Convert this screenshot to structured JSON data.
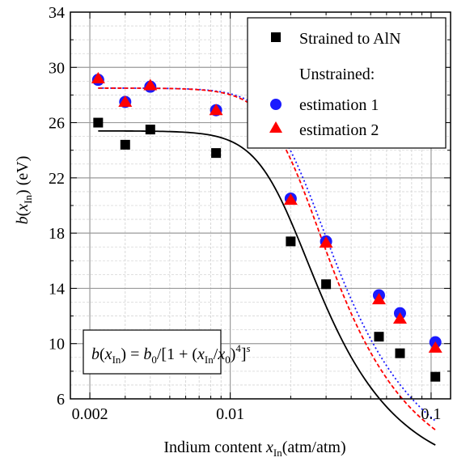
{
  "chart_data": {
    "type": "scatter",
    "x_scale": "log",
    "xlim": [
      0.0016,
      0.125
    ],
    "ylim": [
      6,
      34
    ],
    "grid": true,
    "x_ticks": [
      {
        "value": 0.002,
        "label": "0.002"
      },
      {
        "value": 0.01,
        "label": "0.01"
      },
      {
        "value": 0.1,
        "label": "0.1"
      }
    ],
    "y_ticks": [
      {
        "value": 6,
        "label": "6"
      },
      {
        "value": 10,
        "label": "10"
      },
      {
        "value": 14,
        "label": "14"
      },
      {
        "value": 18,
        "label": "18"
      },
      {
        "value": 22,
        "label": "22"
      },
      {
        "value": 26,
        "label": "26"
      },
      {
        "value": 30,
        "label": "30"
      },
      {
        "value": 34,
        "label": "34"
      }
    ],
    "xlabel": {
      "main": "Indium content ",
      "var": "x",
      "sub": "In",
      "unit": "(atm/atm)"
    },
    "ylabel": {
      "var": "b",
      "open": "(",
      "var2": "x",
      "sub": "In",
      "close": ")",
      "unit": " (eV)"
    },
    "legend": {
      "placement": "top-right",
      "strained": "Strained to AlN",
      "unstrained_heading": "Unstrained:",
      "est1": "estimation 1",
      "est2": "estimation 2"
    },
    "annotation": {
      "placement": "bottom-left",
      "p1": "b",
      "p2": "(",
      "p3": "x",
      "p4": "In",
      "p5": ") = ",
      "p6": "b",
      "p7": "0",
      "p8": "/[1 + (",
      "p9": "x",
      "p10": "In",
      "p11": "/",
      "p12": "x",
      "p13": "0",
      "p14": ")",
      "p15": "4",
      "p16": "]",
      "p17": "s"
    },
    "series": [
      {
        "name": "Strained to AlN",
        "marker": "square",
        "color": "#000000",
        "x": [
          0.0022,
          0.003,
          0.004,
          0.0085,
          0.02,
          0.03,
          0.055,
          0.07,
          0.105
        ],
        "y": [
          26.0,
          24.4,
          25.5,
          23.8,
          17.4,
          14.3,
          10.5,
          9.3,
          7.6
        ]
      },
      {
        "name": "estimation 1",
        "marker": "circle",
        "color": "#1a1aff",
        "x": [
          0.0022,
          0.003,
          0.004,
          0.0085,
          0.02,
          0.03,
          0.055,
          0.07,
          0.105
        ],
        "y": [
          29.1,
          27.5,
          28.6,
          26.9,
          20.5,
          17.4,
          13.5,
          12.2,
          10.1
        ]
      },
      {
        "name": "estimation 2",
        "marker": "triangle",
        "color": "#ff0000",
        "x": [
          0.0022,
          0.003,
          0.004,
          0.0085,
          0.02,
          0.03,
          0.055,
          0.07,
          0.105
        ],
        "y": [
          29.2,
          27.5,
          28.7,
          26.9,
          20.4,
          17.3,
          13.2,
          11.8,
          9.7
        ]
      }
    ],
    "fits": [
      {
        "color": "#000000",
        "style": "solid",
        "b0": 25.4,
        "x0": 0.018,
        "s": 0.32
      },
      {
        "color": "#1a1aff",
        "style": "dotted",
        "b0": 28.5,
        "x0": 0.021,
        "s": 0.29
      },
      {
        "color": "#ff0000",
        "style": "dashed",
        "b0": 28.5,
        "x0": 0.0205,
        "s": 0.31
      }
    ]
  }
}
